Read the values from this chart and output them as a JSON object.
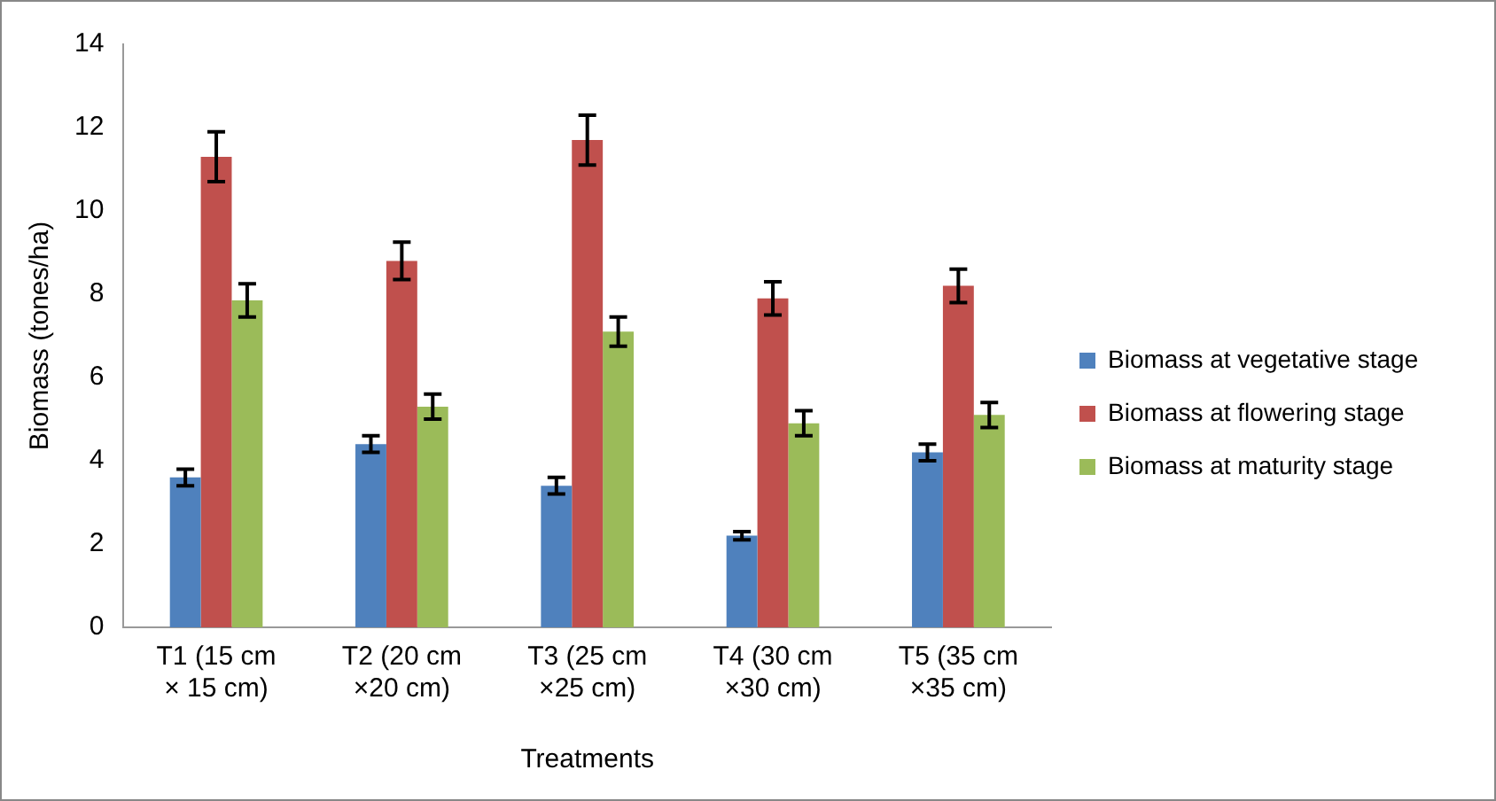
{
  "chart_data": {
    "type": "bar",
    "xlabel": "Treatments",
    "ylabel": "Biomass (tones/ha)",
    "categories": [
      "T1 (15 cm × 15 cm)",
      "T2 (20 cm ×20 cm)",
      "T3 (25 cm ×25 cm)",
      "T4 (30 cm ×30 cm)",
      "T5 (35 cm ×35 cm)"
    ],
    "series": [
      {
        "name": "Biomass at vegetative stage",
        "color": "#4f81bd",
        "values": [
          3.6,
          4.4,
          3.4,
          2.2,
          4.2
        ],
        "errors": [
          0.2,
          0.2,
          0.2,
          0.1,
          0.2
        ]
      },
      {
        "name": "Biomass at flowering stage",
        "color": "#c0504d",
        "values": [
          11.3,
          8.8,
          11.7,
          7.9,
          8.2
        ],
        "errors": [
          0.6,
          0.45,
          0.6,
          0.4,
          0.4
        ]
      },
      {
        "name": "Biomass at maturity stage",
        "color": "#9bbb59",
        "values": [
          7.85,
          5.3,
          7.1,
          4.9,
          5.1
        ],
        "errors": [
          0.4,
          0.3,
          0.35,
          0.3,
          0.3
        ]
      }
    ],
    "ylim": [
      0,
      14
    ],
    "yticks": [
      0,
      2,
      4,
      6,
      8,
      10,
      12,
      14
    ],
    "grid": false,
    "legend": "right"
  }
}
